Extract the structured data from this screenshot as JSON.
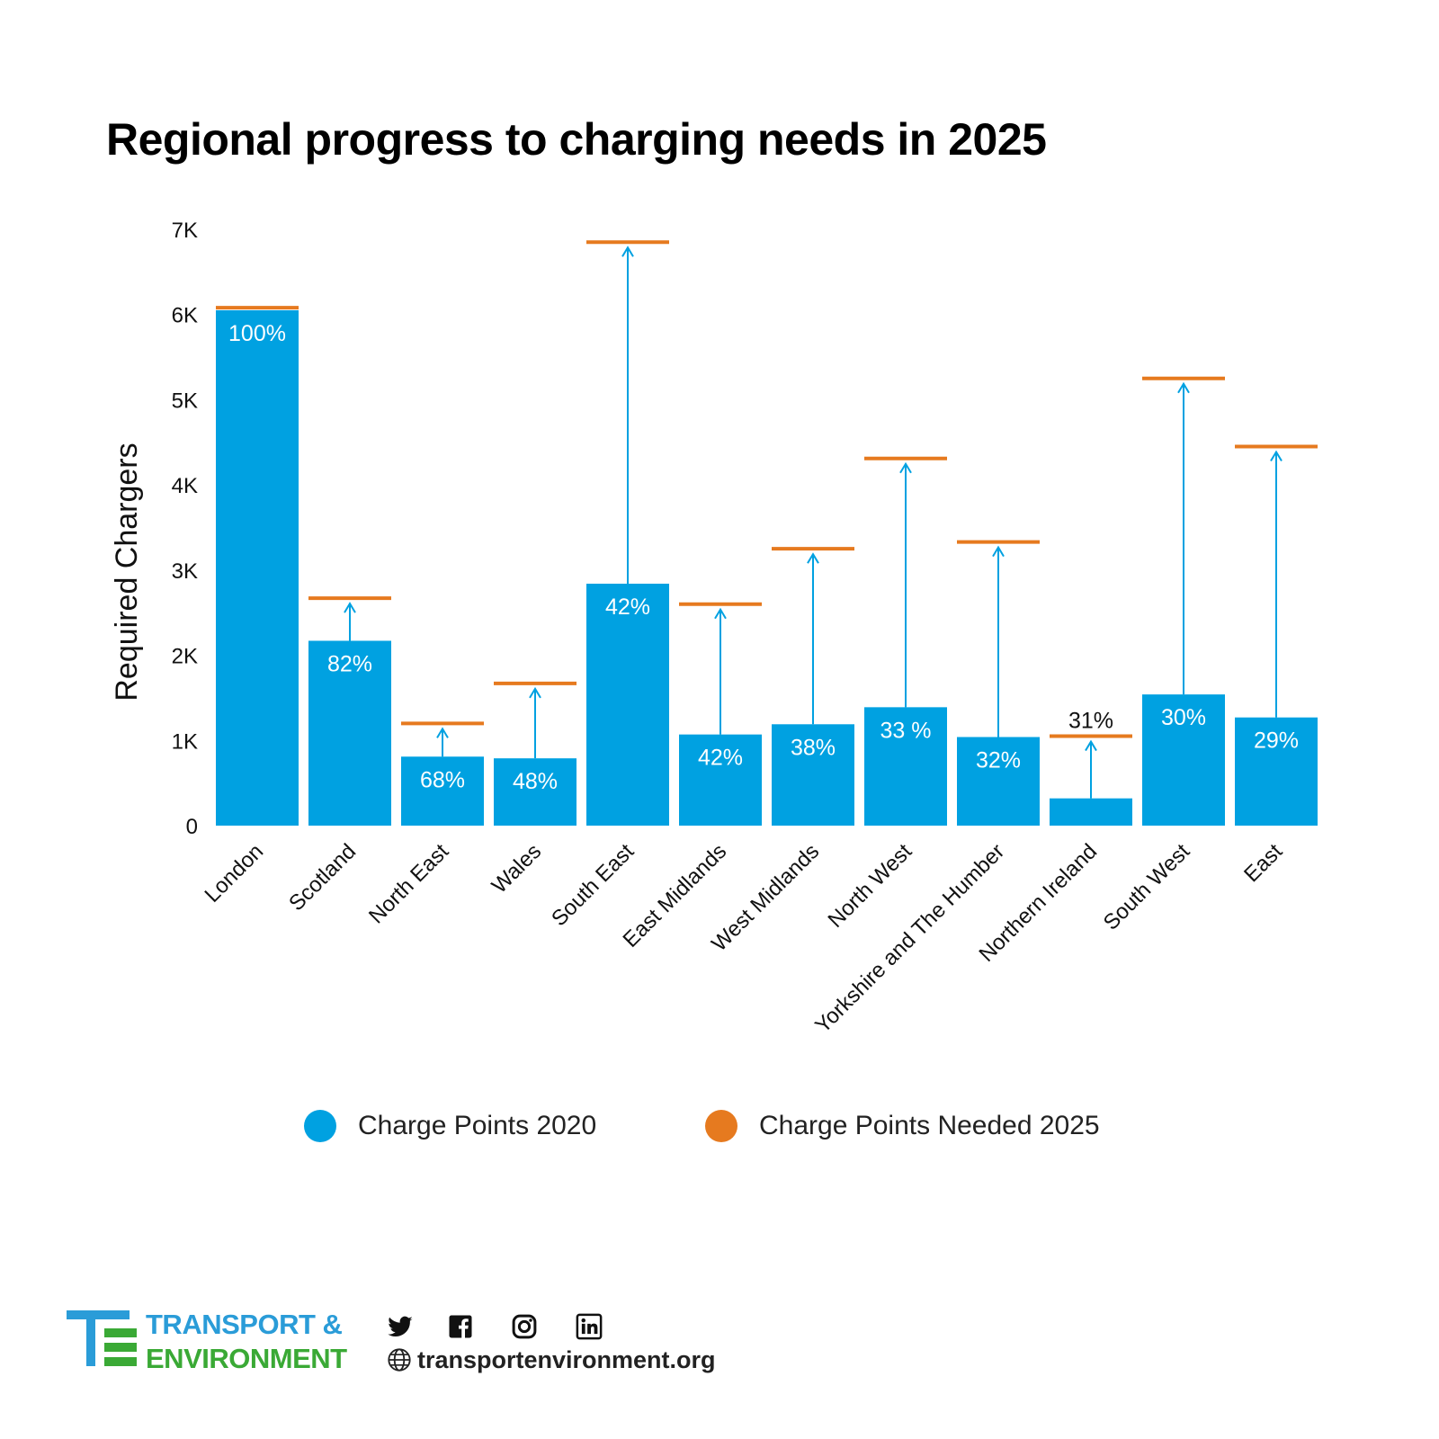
{
  "colors": {
    "bar": "#00a1e1",
    "target": "#e67a1f",
    "logo_blue": "#2a9cd8",
    "logo_green": "#3aa935"
  },
  "chart_data": {
    "type": "bar",
    "title": "Regional progress to charging needs in 2025",
    "ylabel": "Required Chargers",
    "xlabel": "",
    "ylim": [
      0,
      7000
    ],
    "yticks": [
      {
        "value": 0,
        "label": "0"
      },
      {
        "value": 1000,
        "label": "1K"
      },
      {
        "value": 2000,
        "label": "2K"
      },
      {
        "value": 3000,
        "label": "3K"
      },
      {
        "value": 4000,
        "label": "4K"
      },
      {
        "value": 5000,
        "label": "5K"
      },
      {
        "value": 6000,
        "label": "6K"
      },
      {
        "value": 7000,
        "label": "7K"
      }
    ],
    "grid": false,
    "legend_position": "bottom",
    "categories": [
      "London",
      "Scotland",
      "North East",
      "Wales",
      "South East",
      "East Midlands",
      "West Midlands",
      "North West",
      "Yorkshire and The Humber",
      "Northern Ireland",
      "South West",
      "East"
    ],
    "series": [
      {
        "name": "Charge Points 2020",
        "type": "bar",
        "values": [
          6050,
          2170,
          810,
          790,
          2840,
          1070,
          1190,
          1390,
          1040,
          320,
          1540,
          1270
        ]
      },
      {
        "name": "Charge Points Needed 2025",
        "type": "target-line",
        "values": [
          6080,
          2670,
          1200,
          1670,
          6850,
          2600,
          3250,
          4310,
          3330,
          1050,
          5250,
          4450
        ]
      }
    ],
    "data_labels": [
      "100%",
      "82%",
      "68%",
      "48%",
      "42%",
      "42%",
      "38%",
      "33 %",
      "32%",
      "31%",
      "30%",
      "29%"
    ]
  },
  "footer": {
    "logo_line1": "TRANSPORT &",
    "logo_line2": "ENVIRONMENT",
    "website": "transportenvironment.org",
    "social_icons": [
      "twitter-icon",
      "facebook-icon",
      "instagram-icon",
      "linkedin-icon",
      "globe-icon"
    ]
  }
}
